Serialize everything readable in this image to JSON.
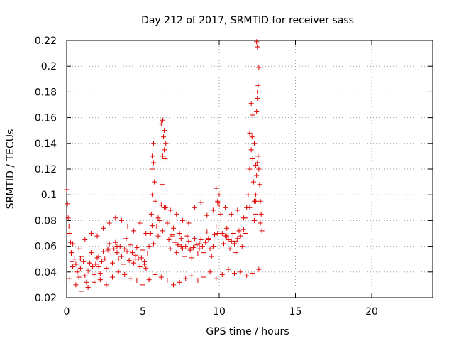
{
  "chart_data": {
    "type": "scatter",
    "title": "Day 212 of 2017, SRMTID for receiver sass",
    "xlabel": "GPS time / hours",
    "ylabel": "SRMTID / TECUs",
    "xlim": [
      0,
      24
    ],
    "ylim": [
      0.02,
      0.22
    ],
    "xticks": [
      "0",
      "5",
      "10",
      "15",
      "20"
    ],
    "yticks": [
      "0.02",
      "0.04",
      "0.06",
      "0.08",
      "0.1",
      "0.12",
      "0.14",
      "0.16",
      "0.18",
      "0.2",
      "0.22"
    ],
    "grid": true,
    "marker": "+",
    "color": "#e00000",
    "series": [
      {
        "name": "SRMTID",
        "x": [
          0.0,
          0.05,
          0.1,
          0.15,
          0.2,
          0.25,
          0.3,
          0.35,
          0.4,
          0.5,
          0.6,
          0.7,
          0.8,
          0.9,
          1.0,
          1.1,
          1.2,
          1.3,
          1.4,
          1.5,
          1.6,
          1.7,
          1.8,
          1.9,
          2.0,
          2.1,
          2.2,
          2.3,
          2.4,
          2.5,
          2.6,
          2.7,
          2.8,
          2.9,
          3.0,
          3.1,
          3.2,
          3.3,
          3.4,
          3.5,
          3.6,
          3.7,
          3.8,
          3.9,
          4.0,
          4.1,
          4.2,
          4.3,
          4.4,
          4.5,
          4.6,
          4.7,
          4.8,
          4.9,
          5.0,
          5.1,
          5.2,
          5.3,
          5.4,
          5.5,
          5.55,
          5.6,
          5.65,
          5.7,
          5.75,
          5.8,
          5.9,
          6.0,
          6.1,
          6.2,
          6.25,
          6.3,
          6.35,
          6.4,
          6.45,
          6.5,
          6.6,
          6.7,
          6.8,
          6.9,
          7.0,
          7.1,
          7.2,
          7.3,
          7.4,
          7.5,
          7.6,
          7.7,
          7.8,
          7.9,
          8.0,
          8.1,
          8.2,
          8.3,
          8.4,
          8.5,
          8.6,
          8.7,
          8.8,
          8.9,
          9.0,
          9.1,
          9.2,
          9.3,
          9.4,
          9.5,
          9.6,
          9.7,
          9.8,
          9.9,
          10.0,
          10.1,
          10.2,
          10.3,
          10.4,
          10.5,
          10.6,
          10.7,
          10.8,
          10.9,
          11.0,
          11.1,
          11.2,
          11.3,
          11.4,
          11.5,
          11.6,
          11.7,
          11.8,
          11.9,
          12.0,
          12.1,
          12.15,
          12.2,
          12.25,
          12.3,
          12.35,
          12.4,
          12.45,
          12.5,
          12.55,
          12.6,
          12.65,
          12.7,
          12.75,
          12.8,
          0.2,
          0.6,
          1.0,
          1.4,
          1.8,
          2.2,
          2.6,
          3.0,
          3.4,
          3.8,
          4.2,
          4.6,
          5.0,
          5.4,
          5.8,
          6.2,
          6.6,
          7.0,
          7.4,
          7.8,
          8.2,
          8.6,
          9.0,
          9.4,
          9.8,
          10.2,
          10.6,
          11.0,
          11.4,
          11.8,
          12.2,
          12.6,
          0.4,
          0.8,
          1.2,
          1.6,
          2.0,
          2.4,
          2.8,
          3.2,
          3.6,
          4.0,
          4.4,
          4.8,
          5.2,
          5.6,
          6.0,
          6.4,
          6.8,
          7.2,
          7.6,
          8.0,
          8.4,
          8.8,
          9.2,
          9.6,
          10.0,
          10.4,
          10.8,
          11.2,
          11.6,
          12.0,
          12.4,
          0.3,
          0.9,
          1.5,
          2.1,
          2.7,
          3.3,
          3.9,
          4.5,
          5.1,
          5.7,
          6.3,
          6.9,
          7.5,
          8.1,
          8.7,
          9.3,
          9.9,
          10.5,
          11.1,
          11.7,
          12.3,
          12.7,
          5.6,
          5.7,
          6.2,
          6.3,
          6.4,
          6.5,
          9.8,
          9.9,
          12.0,
          12.1,
          12.2,
          12.3,
          12.4,
          12.5,
          12.6,
          12.45,
          12.5,
          12.55,
          12.5,
          12.45
        ],
        "y": [
          0.104,
          0.093,
          0.082,
          0.075,
          0.07,
          0.063,
          0.055,
          0.048,
          0.044,
          0.05,
          0.046,
          0.04,
          0.036,
          0.043,
          0.052,
          0.048,
          0.037,
          0.032,
          0.041,
          0.047,
          0.055,
          0.044,
          0.038,
          0.046,
          0.051,
          0.044,
          0.039,
          0.048,
          0.056,
          0.05,
          0.043,
          0.057,
          0.062,
          0.054,
          0.047,
          0.058,
          0.063,
          0.055,
          0.05,
          0.06,
          0.052,
          0.046,
          0.058,
          0.066,
          0.056,
          0.049,
          0.061,
          0.055,
          0.047,
          0.053,
          0.059,
          0.05,
          0.044,
          0.051,
          0.057,
          0.048,
          0.043,
          0.054,
          0.06,
          0.07,
          0.085,
          0.1,
          0.12,
          0.125,
          0.11,
          0.095,
          0.075,
          0.068,
          0.08,
          0.092,
          0.108,
          0.13,
          0.145,
          0.15,
          0.128,
          0.09,
          0.078,
          0.065,
          0.058,
          0.069,
          0.074,
          0.063,
          0.055,
          0.061,
          0.07,
          0.066,
          0.058,
          0.052,
          0.06,
          0.068,
          0.064,
          0.057,
          0.051,
          0.059,
          0.066,
          0.061,
          0.054,
          0.058,
          0.065,
          0.06,
          0.055,
          0.063,
          0.071,
          0.066,
          0.058,
          0.052,
          0.06,
          0.069,
          0.075,
          0.094,
          0.1,
          0.085,
          0.07,
          0.062,
          0.068,
          0.074,
          0.065,
          0.058,
          0.064,
          0.07,
          0.062,
          0.055,
          0.066,
          0.072,
          0.068,
          0.06,
          0.073,
          0.082,
          0.09,
          0.1,
          0.12,
          0.135,
          0.145,
          0.128,
          0.11,
          0.095,
          0.085,
          0.1,
          0.115,
          0.125,
          0.13,
          0.12,
          0.108,
          0.095,
          0.085,
          0.072,
          0.035,
          0.03,
          0.025,
          0.028,
          0.032,
          0.034,
          0.03,
          0.036,
          0.04,
          0.038,
          0.035,
          0.033,
          0.03,
          0.034,
          0.038,
          0.036,
          0.033,
          0.03,
          0.032,
          0.035,
          0.037,
          0.033,
          0.036,
          0.04,
          0.035,
          0.038,
          0.042,
          0.039,
          0.04,
          0.037,
          0.039,
          0.042,
          0.062,
          0.058,
          0.065,
          0.07,
          0.068,
          0.074,
          0.078,
          0.082,
          0.08,
          0.075,
          0.072,
          0.078,
          0.07,
          0.076,
          0.082,
          0.09,
          0.088,
          0.085,
          0.08,
          0.078,
          0.09,
          0.094,
          0.084,
          0.088,
          0.092,
          0.09,
          0.085,
          0.088,
          0.082,
          0.09,
          0.095,
          0.054,
          0.05,
          0.047,
          0.052,
          0.058,
          0.06,
          0.056,
          0.05,
          0.046,
          0.062,
          0.072,
          0.068,
          0.06,
          0.058,
          0.062,
          0.065,
          0.07,
          0.068,
          0.064,
          0.07,
          0.08,
          0.078,
          0.13,
          0.14,
          0.155,
          0.158,
          0.135,
          0.14,
          0.105,
          0.095,
          0.148,
          0.171,
          0.162,
          0.14,
          0.123,
          0.18,
          0.199,
          0.219,
          0.215,
          0.185,
          0.175,
          0.165
        ]
      }
    ]
  }
}
